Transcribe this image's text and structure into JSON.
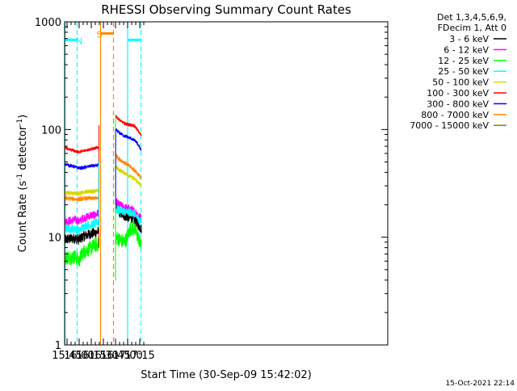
{
  "chart_data": {
    "type": "line",
    "title": "RHESSI Observing Summary Count Rates",
    "xlabel": "Start Time (30-Sep-09 15:42:02)",
    "ylabel_main": "Count Rate (s",
    "ylabel_sup1": "-1",
    "ylabel_mid": " detector",
    "ylabel_sup2": "-1",
    "ylabel_end": ")",
    "yscale": "log",
    "xlim": [
      942,
      1342
    ],
    "ylim": [
      1,
      1000
    ],
    "x_ticks": [
      {
        "v": 945,
        "label": "15:45"
      },
      {
        "v": 960,
        "label": "16:00"
      },
      {
        "v": 975,
        "label": "16:15"
      },
      {
        "v": 990,
        "label": "16:30"
      },
      {
        "v": 1005,
        "label": "16:45"
      },
      {
        "v": 1020,
        "label": "17:00"
      },
      {
        "v": 1035,
        "label": "17:15"
      }
    ],
    "y_ticks": [
      {
        "v": 1,
        "label": "1"
      },
      {
        "v": 10,
        "label": "10"
      },
      {
        "v": 100,
        "label": "100"
      },
      {
        "v": 1000,
        "label": "1000"
      }
    ],
    "legend_header": [
      "Det 1,3,4,5,6,9,",
      "FDecim 1, Att 0"
    ],
    "series": [
      {
        "name": "3 - 6 keV",
        "color": "#000000",
        "seg1": [
          [
            942,
            9.5
          ],
          [
            955,
            9.8
          ],
          [
            960,
            9.5
          ],
          [
            965,
            10.2
          ],
          [
            970,
            10.5
          ],
          [
            975,
            10.8
          ],
          [
            980,
            11.0
          ],
          [
            984,
            11.2
          ]
        ],
        "seg2": [
          [
            1005,
            20
          ],
          [
            1010,
            17
          ],
          [
            1015,
            16
          ],
          [
            1020,
            15.5
          ],
          [
            1025,
            15
          ],
          [
            1030,
            14
          ],
          [
            1035,
            12.5
          ],
          [
            1037,
            12
          ]
        ],
        "noise": 0.05
      },
      {
        "name": "6 - 12 keV",
        "color": "#ff00ff",
        "seg1": [
          [
            942,
            14
          ],
          [
            955,
            14.5
          ],
          [
            960,
            14
          ],
          [
            965,
            15
          ],
          [
            970,
            15.5
          ],
          [
            975,
            16
          ],
          [
            980,
            16
          ],
          [
            984,
            17
          ]
        ],
        "seg2": [
          [
            1005,
            21
          ],
          [
            1010,
            20
          ],
          [
            1015,
            19
          ],
          [
            1020,
            18.5
          ],
          [
            1025,
            18
          ],
          [
            1030,
            17
          ],
          [
            1035,
            15.5
          ],
          [
            1037,
            15
          ]
        ],
        "noise": 0.04
      },
      {
        "name": "12 - 25 keV",
        "color": "#00ff00",
        "seg1": [
          [
            942,
            6.5
          ],
          [
            950,
            6.5
          ],
          [
            955,
            6.6
          ],
          [
            960,
            6.0
          ],
          [
            963,
            7.0
          ],
          [
            968,
            7.5
          ],
          [
            975,
            8.0
          ],
          [
            980,
            8.5
          ],
          [
            984,
            8.5
          ]
        ],
        "seg2": [
          [
            1005,
            10
          ],
          [
            1010,
            9.5
          ],
          [
            1015,
            9.0
          ],
          [
            1018,
            9.5
          ],
          [
            1023,
            12
          ],
          [
            1028,
            12
          ],
          [
            1033,
            10
          ],
          [
            1037,
            8
          ]
        ],
        "noise": 0.07
      },
      {
        "name": "25 - 50 keV",
        "color": "#00ffff",
        "seg1": [
          [
            942,
            12
          ],
          [
            955,
            12
          ],
          [
            960,
            11.5
          ],
          [
            965,
            12.5
          ],
          [
            970,
            13
          ],
          [
            975,
            13
          ],
          [
            980,
            13.5
          ],
          [
            984,
            14
          ]
        ],
        "seg2": [
          [
            1005,
            18
          ],
          [
            1010,
            18
          ],
          [
            1015,
            17.5
          ],
          [
            1020,
            17
          ],
          [
            1025,
            17
          ],
          [
            1030,
            16
          ],
          [
            1035,
            14.5
          ],
          [
            1037,
            14
          ]
        ],
        "noise": 0.04
      },
      {
        "name": "50 - 100 keV",
        "color": "#d7d700",
        "seg1": [
          [
            942,
            26
          ],
          [
            960,
            25.5
          ],
          [
            970,
            26.5
          ],
          [
            984,
            27
          ]
        ],
        "seg2": [
          [
            1005,
            45
          ],
          [
            1010,
            42
          ],
          [
            1015,
            40
          ],
          [
            1020,
            38
          ],
          [
            1025,
            36
          ],
          [
            1030,
            34
          ],
          [
            1035,
            31
          ],
          [
            1037,
            30
          ]
        ],
        "noise": 0.02
      },
      {
        "name": "100 - 300 keV",
        "color": "#ff0000",
        "seg1": [
          [
            942,
            68
          ],
          [
            950,
            65
          ],
          [
            955,
            63
          ],
          [
            960,
            62
          ],
          [
            965,
            63
          ],
          [
            970,
            65
          ],
          [
            975,
            66
          ],
          [
            980,
            67
          ],
          [
            984,
            68
          ]
        ],
        "seg2": [
          [
            1005,
            135
          ],
          [
            1010,
            122
          ],
          [
            1015,
            115
          ],
          [
            1020,
            112
          ],
          [
            1025,
            110
          ],
          [
            1030,
            105
          ],
          [
            1035,
            92
          ],
          [
            1037,
            88
          ]
        ],
        "noise": 0.015
      },
      {
        "name": "300 - 800 keV",
        "color": "#0000ff",
        "seg1": [
          [
            942,
            48
          ],
          [
            950,
            46
          ],
          [
            955,
            45
          ],
          [
            960,
            44
          ],
          [
            965,
            44
          ],
          [
            970,
            45
          ],
          [
            975,
            46
          ],
          [
            980,
            46
          ],
          [
            984,
            47
          ]
        ],
        "seg2": [
          [
            1005,
            100
          ],
          [
            1010,
            93
          ],
          [
            1015,
            88
          ],
          [
            1020,
            85
          ],
          [
            1025,
            82
          ],
          [
            1030,
            78
          ],
          [
            1035,
            68
          ],
          [
            1037,
            65
          ]
        ],
        "noise": 0.015
      },
      {
        "name": "800 - 7000 keV",
        "color": "#ff8800",
        "seg1": [
          [
            942,
            23
          ],
          [
            960,
            22.5
          ],
          [
            970,
            23
          ],
          [
            984,
            23
          ]
        ],
        "seg2": [
          [
            1005,
            58
          ],
          [
            1010,
            53
          ],
          [
            1015,
            50
          ],
          [
            1020,
            47
          ],
          [
            1025,
            44
          ],
          [
            1030,
            41
          ],
          [
            1035,
            37
          ],
          [
            1037,
            35
          ]
        ],
        "noise": 0.02
      },
      {
        "name": "7000 - 15000 keV",
        "color": "#808000",
        "seg1": [],
        "seg2": [],
        "noise": 0
      }
    ],
    "annotations": [
      {
        "label": "N",
        "color": "#00ffff",
        "bar_from": 942.5,
        "bar_to": 957.5,
        "bar_y": 680,
        "label_at": 960,
        "solid_at": [
          942.5,
          1020
        ],
        "dashed_at": [
          957.5,
          1036.5
        ],
        "bar2_from": 1020,
        "bar2_to": 1036.5
      },
      {
        "label": "S",
        "color": "#ff8800",
        "bar_from": 986.5,
        "bar_to": 1002.5,
        "bar_y": 780,
        "label_at": 985,
        "solid_at": [
          986.5
        ],
        "dashed_at": [
          1002.5
        ]
      }
    ],
    "legend_placement": "right",
    "grid": false
  },
  "timestamp": "15-Oct-2021 22:14"
}
